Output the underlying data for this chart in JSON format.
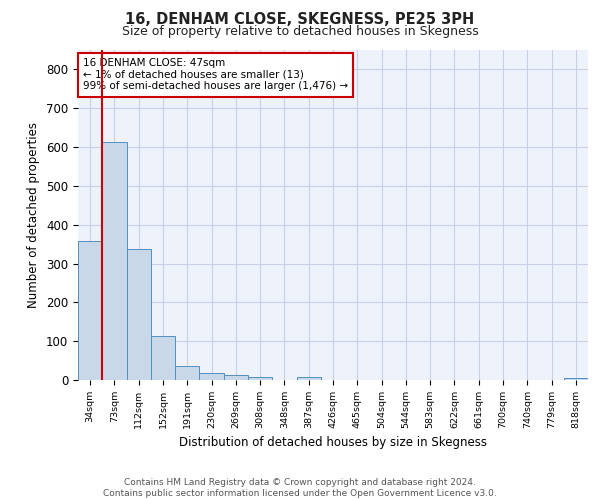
{
  "title": "16, DENHAM CLOSE, SKEGNESS, PE25 3PH",
  "subtitle": "Size of property relative to detached houses in Skegness",
  "xlabel": "Distribution of detached houses by size in Skegness",
  "ylabel": "Number of detached properties",
  "categories": [
    "34sqm",
    "73sqm",
    "112sqm",
    "152sqm",
    "191sqm",
    "230sqm",
    "269sqm",
    "308sqm",
    "348sqm",
    "387sqm",
    "426sqm",
    "465sqm",
    "504sqm",
    "544sqm",
    "583sqm",
    "622sqm",
    "661sqm",
    "700sqm",
    "740sqm",
    "779sqm",
    "818sqm"
  ],
  "values": [
    357,
    612,
    338,
    113,
    37,
    19,
    14,
    8,
    0,
    8,
    0,
    0,
    0,
    0,
    0,
    0,
    0,
    0,
    0,
    0,
    6
  ],
  "bar_color": "#c8d8e8",
  "bar_edge_color": "#5090c0",
  "background_color": "#eef2fb",
  "grid_color": "#c8d0e8",
  "vline_color": "#cc0000",
  "annotation_text": "16 DENHAM CLOSE: 47sqm\n← 1% of detached houses are smaller (13)\n99% of semi-detached houses are larger (1,476) →",
  "annotation_box_color": "#ffffff",
  "annotation_box_edge": "#cc0000",
  "footer": "Contains HM Land Registry data © Crown copyright and database right 2024.\nContains public sector information licensed under the Open Government Licence v3.0.",
  "ylim": [
    0,
    850
  ],
  "yticks": [
    0,
    100,
    200,
    300,
    400,
    500,
    600,
    700,
    800
  ]
}
